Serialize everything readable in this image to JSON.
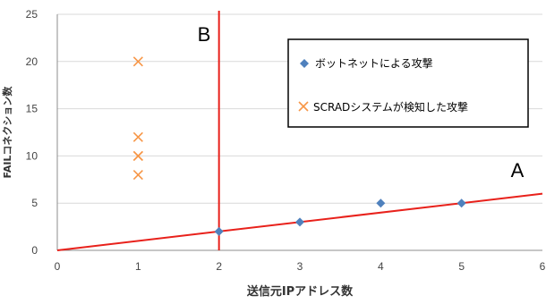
{
  "chart_data": {
    "type": "scatter",
    "xlabel": "送信元IPアドレス数",
    "ylabel": "FAILコネクション数",
    "xlim": [
      0,
      6
    ],
    "ylim": [
      0,
      25
    ],
    "xticks": [
      "0",
      "1",
      "2",
      "3",
      "4",
      "5",
      "6"
    ],
    "yticks": [
      "0",
      "5",
      "10",
      "15",
      "20",
      "25"
    ],
    "grid": "horizontal",
    "legend_position": "top-right",
    "series": [
      {
        "name": "ボットネットによる攻撃",
        "marker": "diamond",
        "color": "#4f81bd",
        "points": [
          [
            2,
            2
          ],
          [
            3,
            3
          ],
          [
            4,
            5
          ],
          [
            5,
            5
          ]
        ]
      },
      {
        "name": "SCRADシステムが検知した攻撃",
        "marker": "x",
        "color": "#f79646",
        "points": [
          [
            1,
            20
          ],
          [
            1,
            12
          ],
          [
            1,
            10
          ],
          [
            1,
            10
          ],
          [
            1,
            8
          ]
        ]
      }
    ],
    "lines": {
      "A": {
        "label": "A",
        "color": "#e8211b",
        "slope": 1,
        "intercept": 0
      },
      "B": {
        "label": "B",
        "color": "#e8211b",
        "x": 2
      }
    }
  }
}
